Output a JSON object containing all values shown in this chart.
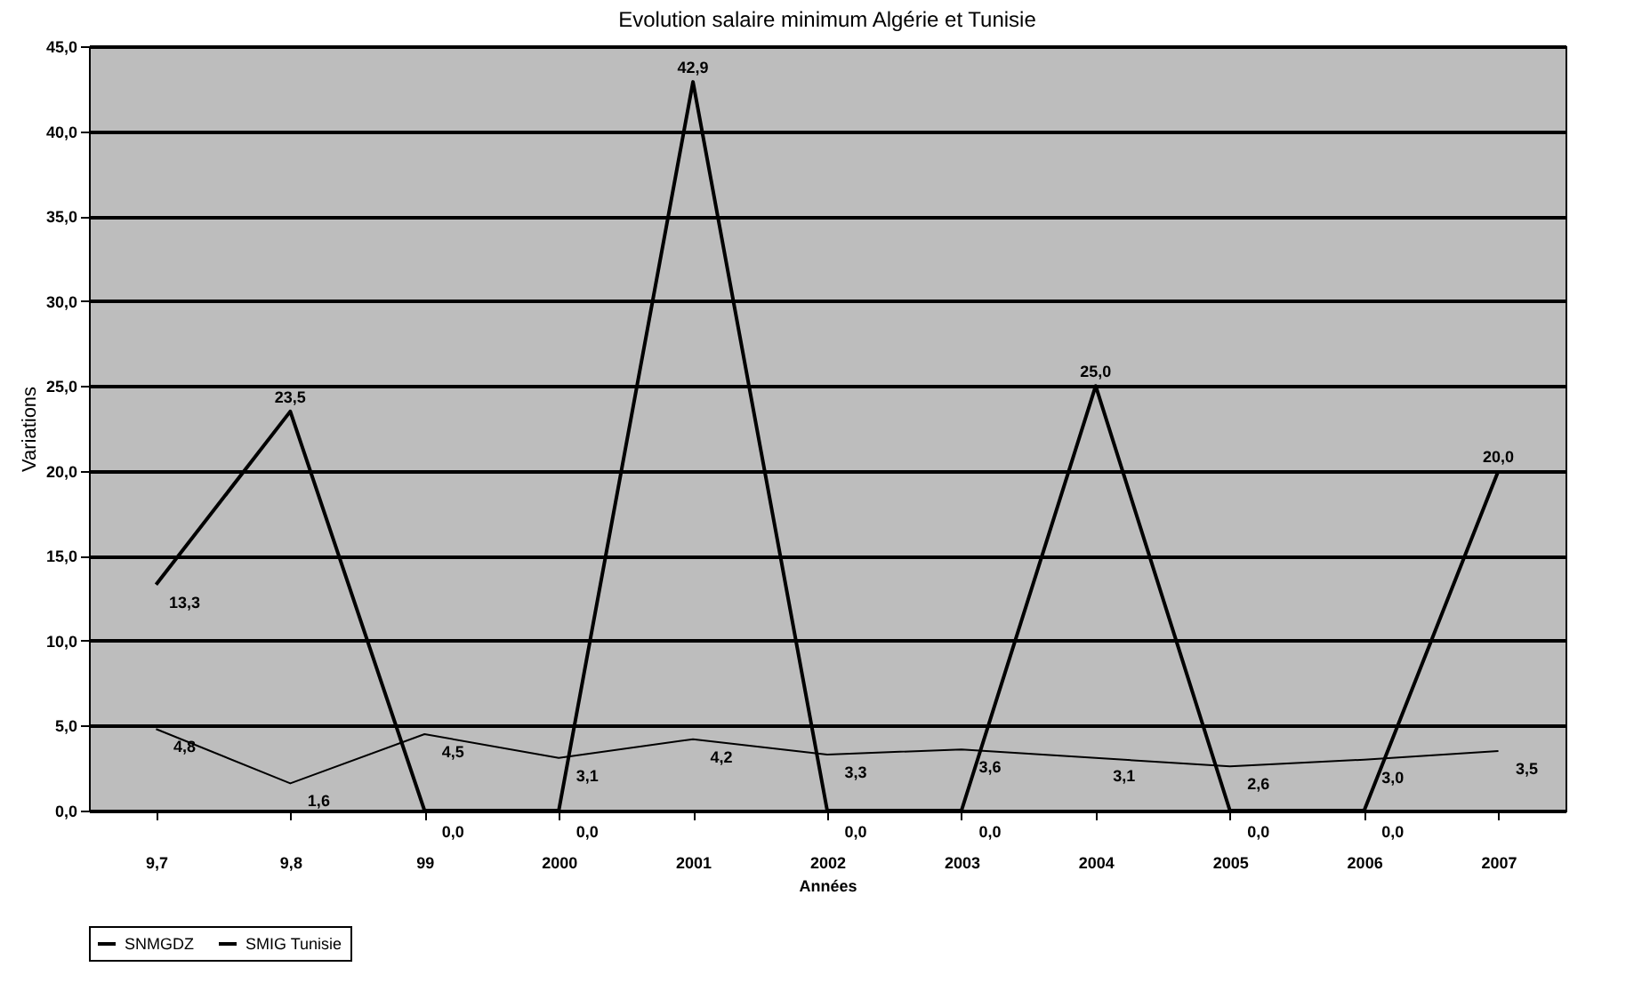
{
  "chart_data": {
    "type": "line",
    "title": "Evolution salaire minimum Algérie et Tunisie",
    "xlabel": "Années",
    "ylabel": "Variations",
    "categories": [
      "9,7",
      "9,8",
      "99",
      "2000",
      "2001",
      "2002",
      "2003",
      "2004",
      "2005",
      "2006",
      "2007"
    ],
    "series": [
      {
        "name": "SNMGDZ",
        "color": "#000000",
        "values": [
          13.3,
          23.5,
          0.0,
          0.0,
          42.9,
          0.0,
          0.0,
          25.0,
          0.0,
          0.0,
          20.0
        ],
        "value_labels": [
          "13,3",
          "23,5",
          "0,0",
          "0,0",
          "42,9",
          "0,0",
          "0,0",
          "25,0",
          "0,0",
          "0,0",
          "20,0"
        ]
      },
      {
        "name": "SMIG Tunisie",
        "color": "#000000",
        "values": [
          4.8,
          1.6,
          4.5,
          3.1,
          4.2,
          3.3,
          3.6,
          3.1,
          2.6,
          3.0,
          3.5
        ],
        "value_labels": [
          "4,8",
          "1,6",
          "4,5",
          "3,1",
          "4,2",
          "3,3",
          "3,6",
          "3,1",
          "2,6",
          "3,0",
          "3,5"
        ]
      }
    ],
    "ylim": [
      0,
      45
    ],
    "yticks": [
      {
        "value": 0,
        "label": "0,0"
      },
      {
        "value": 5,
        "label": "5,0"
      },
      {
        "value": 10,
        "label": "10,0"
      },
      {
        "value": 15,
        "label": "15,0"
      },
      {
        "value": 20,
        "label": "20,0"
      },
      {
        "value": 25,
        "label": "25,0"
      },
      {
        "value": 30,
        "label": "30,0"
      },
      {
        "value": 35,
        "label": "35,0"
      },
      {
        "value": 40,
        "label": "40,0"
      },
      {
        "value": 45,
        "label": "45,0"
      }
    ],
    "grid": "y",
    "legend": "bottom"
  }
}
